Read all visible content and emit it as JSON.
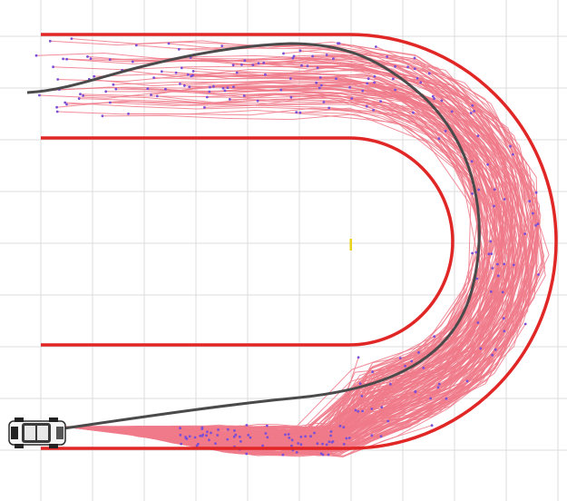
{
  "scene": {
    "background": "#ffffff",
    "grid_color": "#dcdcdc",
    "boundary_color": "#e12626",
    "sample_color": "#f07a8a",
    "node_color": "#7b4fd6",
    "best_path_color": "#4a4a4a",
    "goal_marker_color": "#e8d21a",
    "sample_count": 260,
    "vehicle_icon": "car-icon"
  }
}
